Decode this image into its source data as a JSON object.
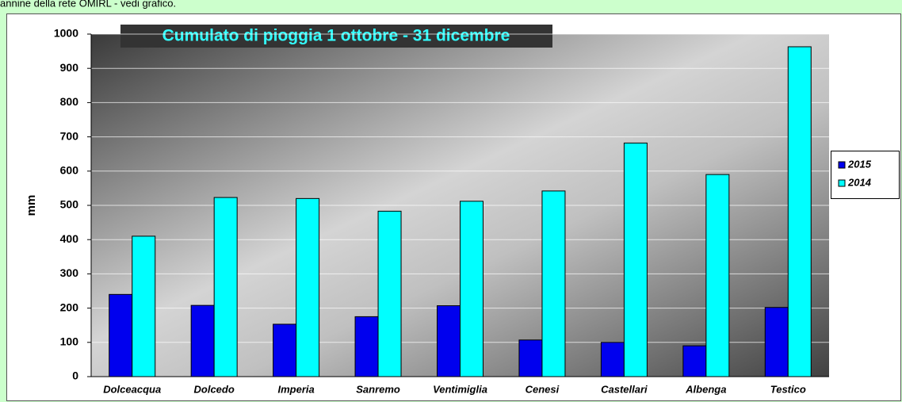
{
  "header_text": "annine della rete OMIRL - vedi grafico.",
  "chart_data": {
    "type": "bar",
    "title": "Cumulato di pioggia 1 ottobre - 31 dicembre",
    "y_label": "mm",
    "categories": [
      "Dolceacqua",
      "Dolcedo",
      "Imperia",
      "Sanremo",
      "Ventimiglia",
      "Cenesi",
      "Castellari",
      "Albenga",
      "Testico"
    ],
    "series": [
      {
        "name": "2015",
        "color": "#0000ee",
        "values": [
          240,
          208,
          153,
          175,
          207,
          107,
          100,
          90,
          202
        ]
      },
      {
        "name": "2014",
        "color": "#00ffff",
        "values": [
          410,
          523,
          520,
          483,
          512,
          542,
          682,
          590,
          963
        ]
      }
    ],
    "ylim": [
      0,
      1000
    ],
    "yticks": [
      0,
      100,
      200,
      300,
      400,
      500,
      600,
      700,
      800,
      900,
      1000
    ],
    "grid": true,
    "legend": "right"
  }
}
